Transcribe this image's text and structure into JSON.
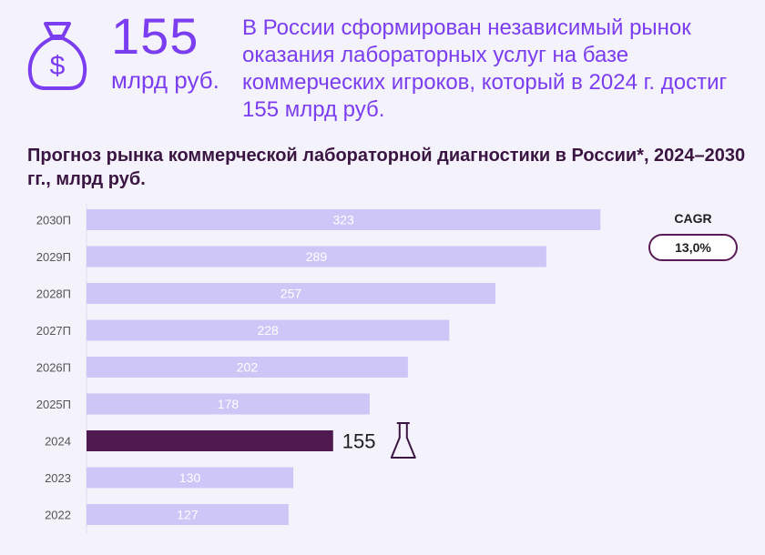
{
  "header": {
    "big_number": "155",
    "big_unit": "млрд руб.",
    "headline": "В России сформирован независимый рынок оказания лабораторных услуг на базе коммерческих игроков, который в 2024 г. достиг 155 млрд руб."
  },
  "colors": {
    "accent": "#7b3df0",
    "bar": "#cec6f7",
    "highlight_bar": "#4f1a50",
    "title": "#3a1541"
  },
  "icons": {
    "money": "money-bag-icon",
    "flask": "flask-icon"
  },
  "cagr": {
    "label": "CAGR",
    "value": "13,0%"
  },
  "chart_data": {
    "type": "bar",
    "orientation": "horizontal",
    "title": "Прогноз рынка коммерческой лабораторной диагностики в России*, 2024–2030 гг., млрд руб.",
    "categories": [
      "2030П",
      "2029П",
      "2028П",
      "2027П",
      "2026П",
      "2025П",
      "2024",
      "2023",
      "2022"
    ],
    "values": [
      323,
      289,
      257,
      228,
      202,
      178,
      155,
      130,
      127
    ],
    "highlight_category": "2024",
    "xlim": [
      0,
      330
    ],
    "grid": false,
    "legend": "none"
  }
}
